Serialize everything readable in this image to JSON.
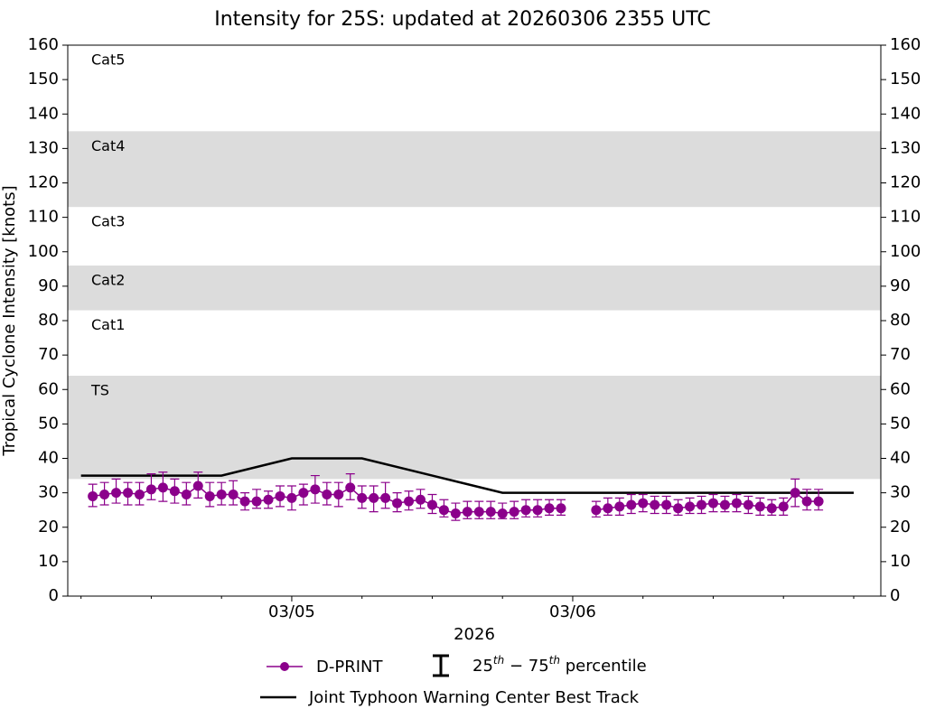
{
  "chart_data": {
    "type": "line",
    "title": "Intensity for 25S: updated at 20260306 2355 UTC",
    "xlabel": "2026",
    "ylabel": "Tropical Cyclone Intensity [knots]",
    "xlim": [
      "2026-03-04T04:52",
      "2026-03-07T02:19"
    ],
    "xticks": [
      {
        "value": "2026-03-05T00:00",
        "label": "03/05"
      },
      {
        "value": "2026-03-06T00:00",
        "label": "03/06"
      }
    ],
    "xminorticks": [
      "2026-03-04T06:00",
      "2026-03-04T12:00",
      "2026-03-04T18:00",
      "2026-03-05T06:00",
      "2026-03-05T12:00",
      "2026-03-05T18:00",
      "2026-03-06T06:00",
      "2026-03-06T12:00",
      "2026-03-06T18:00",
      "2026-03-07T00:00"
    ],
    "ylim": [
      0,
      160
    ],
    "yticks": [
      0,
      10,
      20,
      30,
      40,
      50,
      60,
      70,
      80,
      90,
      100,
      110,
      120,
      130,
      140,
      150,
      160
    ],
    "right_axis": true,
    "bands": [
      {
        "label": "TS",
        "from": 34,
        "to": 64,
        "shaded": true
      },
      {
        "label": "Cat1",
        "from": 64,
        "to": 83,
        "shaded": false
      },
      {
        "label": "Cat2",
        "from": 83,
        "to": 96,
        "shaded": true
      },
      {
        "label": "Cat3",
        "from": 96,
        "to": 113,
        "shaded": false
      },
      {
        "label": "Cat4",
        "from": 113,
        "to": 135,
        "shaded": true
      },
      {
        "label": "Cat5",
        "from": 135,
        "to": 160,
        "shaded": false
      }
    ],
    "band_color": "#dcdcdc",
    "errorbar_legend": [
      "25",
      "th",
      " − 75",
      "th",
      " percentile"
    ],
    "series": [
      {
        "name": "D-PRINT",
        "color": "#8b008b",
        "marker": true,
        "x": [
          "2026-03-04T07:00",
          "2026-03-04T08:00",
          "2026-03-04T09:00",
          "2026-03-04T10:00",
          "2026-03-04T11:00",
          "2026-03-04T12:00",
          "2026-03-04T13:00",
          "2026-03-04T14:00",
          "2026-03-04T15:00",
          "2026-03-04T16:00",
          "2026-03-04T17:00",
          "2026-03-04T18:00",
          "2026-03-04T19:00",
          "2026-03-04T20:00",
          "2026-03-04T21:00",
          "2026-03-04T22:00",
          "2026-03-04T23:00",
          "2026-03-05T00:00",
          "2026-03-05T01:00",
          "2026-03-05T02:00",
          "2026-03-05T03:00",
          "2026-03-05T04:00",
          "2026-03-05T05:00",
          "2026-03-05T06:00",
          "2026-03-05T07:00",
          "2026-03-05T08:00",
          "2026-03-05T09:00",
          "2026-03-05T10:00",
          "2026-03-05T11:00",
          "2026-03-05T12:00",
          "2026-03-05T13:00",
          "2026-03-05T14:00",
          "2026-03-05T15:00",
          "2026-03-05T16:00",
          "2026-03-05T17:00",
          "2026-03-05T18:00",
          "2026-03-05T19:00",
          "2026-03-05T20:00",
          "2026-03-05T21:00",
          "2026-03-05T22:00",
          "2026-03-05T23:00",
          "2026-03-06T00:30",
          "2026-03-06T02:00",
          "2026-03-06T03:00",
          "2026-03-06T04:00",
          "2026-03-06T05:00",
          "2026-03-06T06:00",
          "2026-03-06T07:00",
          "2026-03-06T08:00",
          "2026-03-06T09:00",
          "2026-03-06T10:00",
          "2026-03-06T11:00",
          "2026-03-06T12:00",
          "2026-03-06T13:00",
          "2026-03-06T14:00",
          "2026-03-06T15:00",
          "2026-03-06T16:00",
          "2026-03-06T17:00",
          "2026-03-06T18:00",
          "2026-03-06T19:00",
          "2026-03-06T20:00",
          "2026-03-06T21:00"
        ],
        "values": [
          29,
          29.5,
          30,
          30,
          29.5,
          31,
          31.5,
          30.5,
          29.5,
          32,
          29,
          29.5,
          29.5,
          27.5,
          27.5,
          28,
          29,
          28.5,
          30,
          31,
          29.5,
          29.5,
          31.5,
          28.5,
          28.5,
          28.5,
          27,
          27.5,
          28,
          26.5,
          25,
          24,
          24.5,
          24.5,
          24.5,
          24,
          24.5,
          25,
          25,
          25.5,
          25.5,
          null,
          25,
          25.5,
          26,
          26.5,
          27,
          26.5,
          26.5,
          25.5,
          26,
          26.5,
          27,
          26.5,
          27,
          26.5,
          26,
          25.5,
          26,
          30,
          27.5,
          27.5
        ],
        "p25": [
          26,
          26.5,
          27,
          26.5,
          26.5,
          28,
          27.5,
          27,
          26.5,
          28.5,
          26,
          26.5,
          26.5,
          25,
          25.5,
          25.5,
          26,
          25,
          26.5,
          27,
          26.5,
          26,
          28,
          25.5,
          24.5,
          25.5,
          24.5,
          25,
          25.5,
          24,
          23,
          22,
          22.5,
          22.5,
          22.5,
          22.5,
          22.5,
          23,
          23,
          23.5,
          23.5,
          null,
          23,
          23.5,
          23.5,
          24,
          24.5,
          24,
          24,
          23.5,
          24,
          24,
          24.5,
          24.5,
          24.5,
          24,
          23.5,
          23.5,
          23.5,
          26,
          25,
          25
        ],
        "p75": [
          32.5,
          33,
          34,
          33,
          33,
          35.5,
          36,
          34,
          33,
          36,
          33,
          33,
          33.5,
          30,
          31,
          30.5,
          32,
          32,
          32.5,
          35,
          33,
          33,
          35.5,
          32,
          32,
          33,
          30,
          30.5,
          31,
          29.5,
          28,
          27,
          27.5,
          27.5,
          27.5,
          27,
          27.5,
          28,
          28,
          28,
          28,
          null,
          27.5,
          28.5,
          28.5,
          29.5,
          29.5,
          29,
          29,
          28,
          28.5,
          29,
          29.5,
          29,
          29.5,
          29,
          28.5,
          28,
          28.5,
          34,
          31,
          31
        ]
      },
      {
        "name": "Joint Typhoon Warning Center Best Track",
        "color": "#000000",
        "marker": false,
        "x": [
          "2026-03-04T06:00",
          "2026-03-04T12:00",
          "2026-03-04T18:00",
          "2026-03-05T00:00",
          "2026-03-05T06:00",
          "2026-03-05T12:00",
          "2026-03-05T18:00",
          "2026-03-06T00:00",
          "2026-03-06T06:00",
          "2026-03-06T12:00",
          "2026-03-06T18:00",
          "2026-03-07T00:00"
        ],
        "values": [
          35,
          35,
          35,
          40,
          40,
          35,
          30,
          30,
          30,
          30,
          30,
          30
        ]
      }
    ]
  }
}
